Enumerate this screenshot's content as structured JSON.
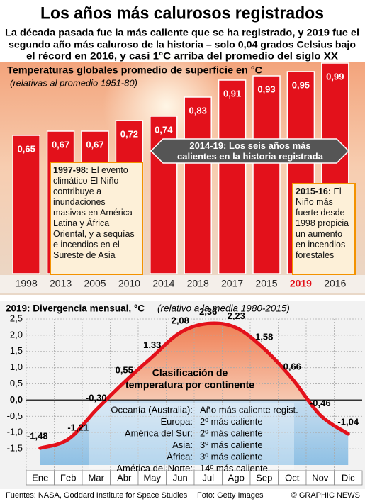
{
  "title": "Los años más calurosos registrados",
  "subtitle": [
    "La década pasada fue la más caliente que se ha registrado, y 2019 fue el",
    "segundo año más caluroso de la historia – solo 0,04 grados Celsius bajo",
    "el récord en 2016, y casi 1°C arriba del promedio del siglo XX"
  ],
  "chart_data": [
    {
      "type": "bar",
      "title": "Temperaturas globales promedio de superficie en °C",
      "subtitle": "(relativas al promedio 1951-80)",
      "categories": [
        "1998",
        "2013",
        "2005",
        "2010",
        "2014",
        "2018",
        "2017",
        "2015",
        "2019",
        "2016"
      ],
      "values": [
        0.65,
        0.67,
        0.67,
        0.72,
        0.74,
        0.83,
        0.91,
        0.93,
        0.95,
        0.99
      ],
      "value_labels": [
        "0,65",
        "0,67",
        "0,67",
        "0,72",
        "0,74",
        "0,83",
        "0,91",
        "0,93",
        "0,95",
        "0,99"
      ],
      "color": "#e3111b",
      "highlight_index": 8,
      "annotations": [
        {
          "heading": "2014-19:",
          "text": "Los seis años más calientes en la historia registrada"
        },
        {
          "heading": "1997-98:",
          "text": "El evento climático El Niño contribuye a inundaciones masivas en América Latina y África Oriental, y a sequías e incendios en el Sureste de Asia"
        },
        {
          "heading": "2015-16:",
          "text": "El Niño más fuerte desde 1998 propicia un aumento en incendios forestales"
        }
      ]
    },
    {
      "type": "line",
      "title": "2019: Divergencia mensual, °C",
      "subtitle": "(relativo a la media 1980-2015)",
      "categories": [
        "Ene",
        "Feb",
        "Mar",
        "Abr",
        "May",
        "Jun",
        "Jul",
        "Ago",
        "Sep",
        "Oct",
        "Nov",
        "Dic"
      ],
      "values": [
        -1.48,
        -1.21,
        -0.3,
        0.55,
        1.33,
        2.08,
        2.36,
        2.23,
        1.58,
        0.66,
        -0.46,
        -1.04
      ],
      "value_labels": [
        "-1,48",
        "-1,21",
        "-0,30",
        "0,55",
        "1,33",
        "2,08",
        "2,36",
        "2,23",
        "1,58",
        "0,66",
        "-0,46",
        "-1,04"
      ],
      "color": "#e3111b",
      "ylim": [
        -2,
        2.5
      ],
      "yticks": [
        {
          "value": 2.5,
          "label": "2,5"
        },
        {
          "value": 2,
          "label": "2,0"
        },
        {
          "value": 1.5,
          "label": "1,5"
        },
        {
          "value": 1,
          "label": "1,0"
        },
        {
          "value": 0.5,
          "label": "0,5"
        },
        {
          "value": 0,
          "label": "0,0"
        },
        {
          "value": -0.5,
          "label": "-0,5"
        },
        {
          "value": -1,
          "label": "-1,0"
        },
        {
          "value": -1.5,
          "label": "-1,5"
        }
      ],
      "grid": true
    }
  ],
  "continent_table": {
    "title": [
      "Clasificación de",
      "temperatura por continente"
    ],
    "rows": [
      [
        "Oceanía (Australia):",
        "Año más caliente regist."
      ],
      [
        "Europa:",
        "2º más caliente"
      ],
      [
        "América del Sur:",
        "2º más caliente"
      ],
      [
        "Asia:",
        "3º más caliente"
      ],
      [
        "África:",
        "3º más caliente"
      ],
      [
        "América del Norte:",
        "14º más caliente"
      ]
    ]
  },
  "footer": {
    "sources": "Fuentes: NASA, Goddard Institute for Space Studies",
    "photo": "Foto: Getty Images",
    "credit": "© GRAPHIC NEWS"
  }
}
